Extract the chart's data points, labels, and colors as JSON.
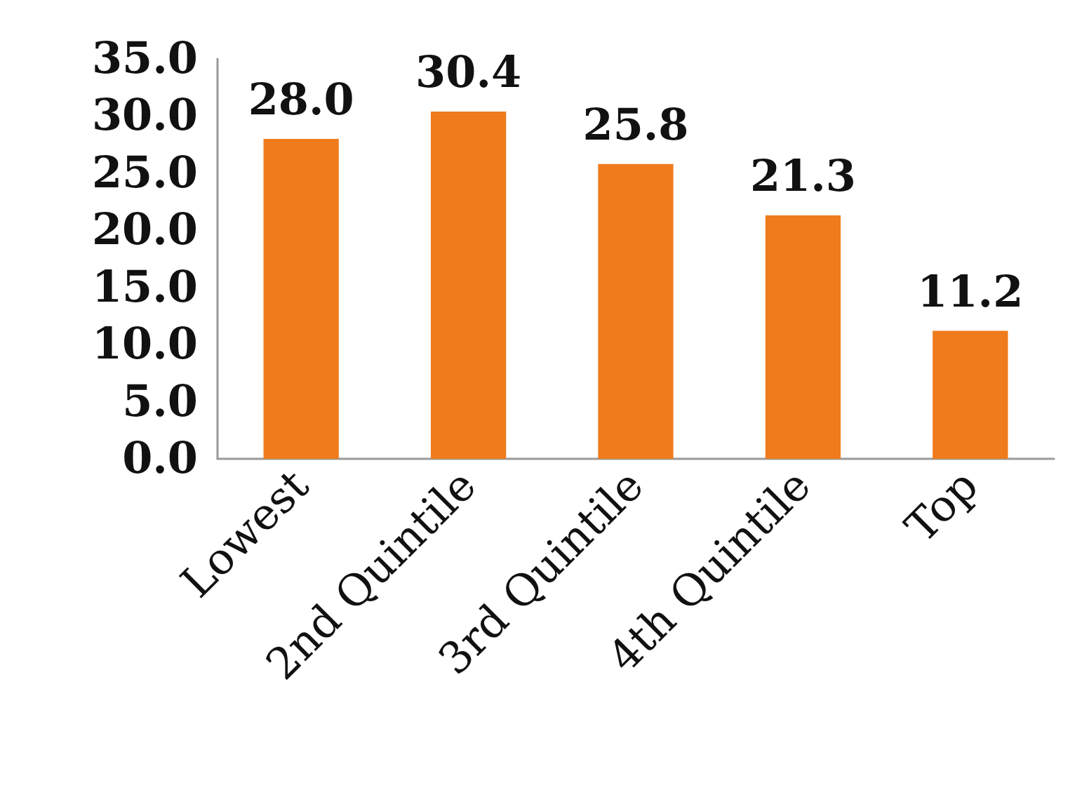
{
  "chart_data": {
    "type": "bar",
    "categories": [
      "Lowest",
      "2nd Quintile",
      "3rd Quintile",
      "4th Quintile",
      "Top"
    ],
    "values": [
      28.0,
      30.4,
      25.8,
      21.3,
      11.2
    ],
    "value_labels": [
      "28.0",
      "30.4",
      "25.8",
      "21.3",
      "11.2"
    ],
    "color": "#ef7b1c",
    "ylim": [
      0,
      35
    ],
    "yticks": [
      {
        "value": 0,
        "label": "0.0"
      },
      {
        "value": 5,
        "label": "5.0"
      },
      {
        "value": 10,
        "label": "10.0"
      },
      {
        "value": 15,
        "label": "15.0"
      },
      {
        "value": 20,
        "label": "20.0"
      },
      {
        "value": 25,
        "label": "25.0"
      },
      {
        "value": 30,
        "label": "30.0"
      },
      {
        "value": 35,
        "label": "35.0"
      }
    ],
    "grid": false
  }
}
